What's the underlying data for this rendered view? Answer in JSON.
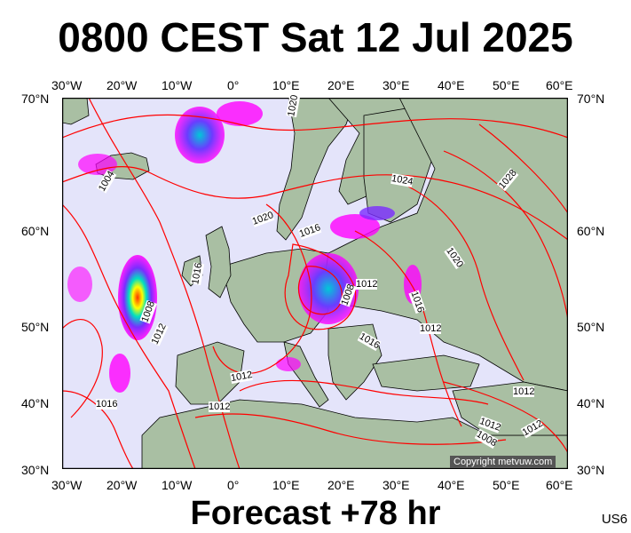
{
  "title": "0800 CEST Sat 12 Jul 2025",
  "subtitle": "Forecast +78 hr",
  "region_code": "US6",
  "copyright": "Copyright metvuw.com",
  "lon_labels": [
    "30°W",
    "20°W",
    "10°W",
    "0°",
    "10°E",
    "20°E",
    "30°E",
    "40°E",
    "50°E",
    "60°E"
  ],
  "lat_labels": [
    "70°N",
    "60°N",
    "50°N",
    "40°N",
    "30°N"
  ],
  "isobar_labels": [
    "1020",
    "1004",
    "1024",
    "1028",
    "1020",
    "1016",
    "1020",
    "1016",
    "1012",
    "1008",
    "1016",
    "1008",
    "1012",
    "1012",
    "1016",
    "1012",
    "1012",
    "1016",
    "1012",
    "1012",
    "1008",
    "1012"
  ],
  "colors": {
    "ocean": "#e4e4fa",
    "land": "#a9bfa3",
    "isobar": "#ff0000",
    "rain_light": "#ff00ff",
    "rain_mid": "#8a2be2",
    "rain_heavy": "#00ced1"
  }
}
